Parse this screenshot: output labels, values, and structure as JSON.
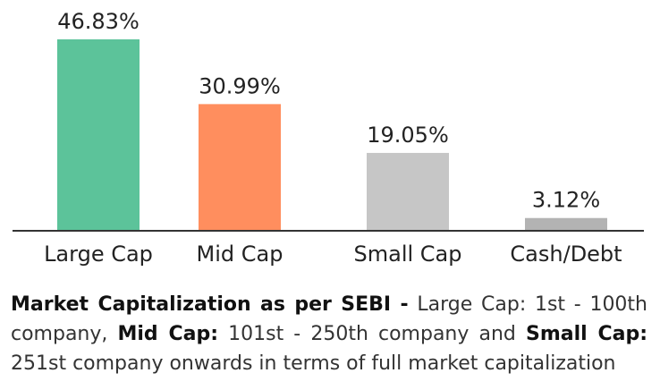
{
  "chart_data": {
    "type": "bar",
    "categories": [
      "Large Cap",
      "Mid Cap",
      "Small Cap",
      "Cash/Debt"
    ],
    "values": [
      46.83,
      30.99,
      19.05,
      3.12
    ],
    "value_labels": [
      "46.83%",
      "30.99%",
      "19.05%",
      "3.12%"
    ],
    "colors": [
      "#5cc39a",
      "#ff8e5e",
      "#c6c6c6",
      "#b3b3b3"
    ],
    "ylim": [
      0,
      46.83
    ],
    "grid": false
  },
  "note": {
    "lead_bold": "Market Capitalization as per SEBI -",
    "large_label": "Large Cap:",
    "large_text": "1st - 100th company,",
    "mid_label": "Mid Cap:",
    "mid_text": "101st - 250th company and",
    "small_label": "Small Cap:",
    "small_text": "251st company onwards in terms of full market capitalization"
  }
}
